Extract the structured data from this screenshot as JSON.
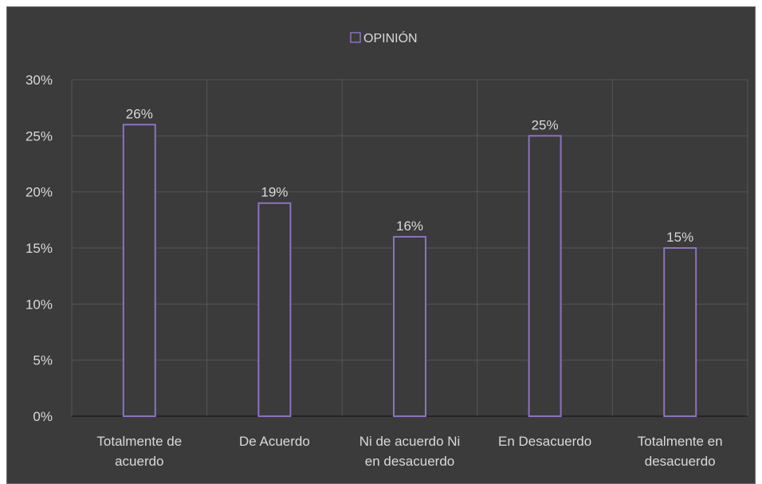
{
  "chart_data": {
    "type": "bar",
    "legend": {
      "label": "OPINIÓN",
      "position": "top"
    },
    "categories": [
      [
        "Totalmente de",
        "acuerdo"
      ],
      [
        "De Acuerdo"
      ],
      [
        "Ni de acuerdo Ni",
        "en desacuerdo"
      ],
      [
        "En Desacuerdo"
      ],
      [
        "Totalmente en",
        "desacuerdo"
      ]
    ],
    "values": [
      26,
      19,
      16,
      25,
      15
    ],
    "data_labels": [
      "26%",
      "19%",
      "16%",
      "25%",
      "15%"
    ],
    "y_ticks": [
      "0%",
      "5%",
      "10%",
      "15%",
      "20%",
      "25%",
      "30%"
    ],
    "ylim": [
      0,
      30
    ],
    "grid": true,
    "colors": {
      "bar_stroke": "#8c72c0",
      "bar_fill": "#3b3b3b",
      "text": "#d9d9d9",
      "grid": "#555555"
    }
  }
}
